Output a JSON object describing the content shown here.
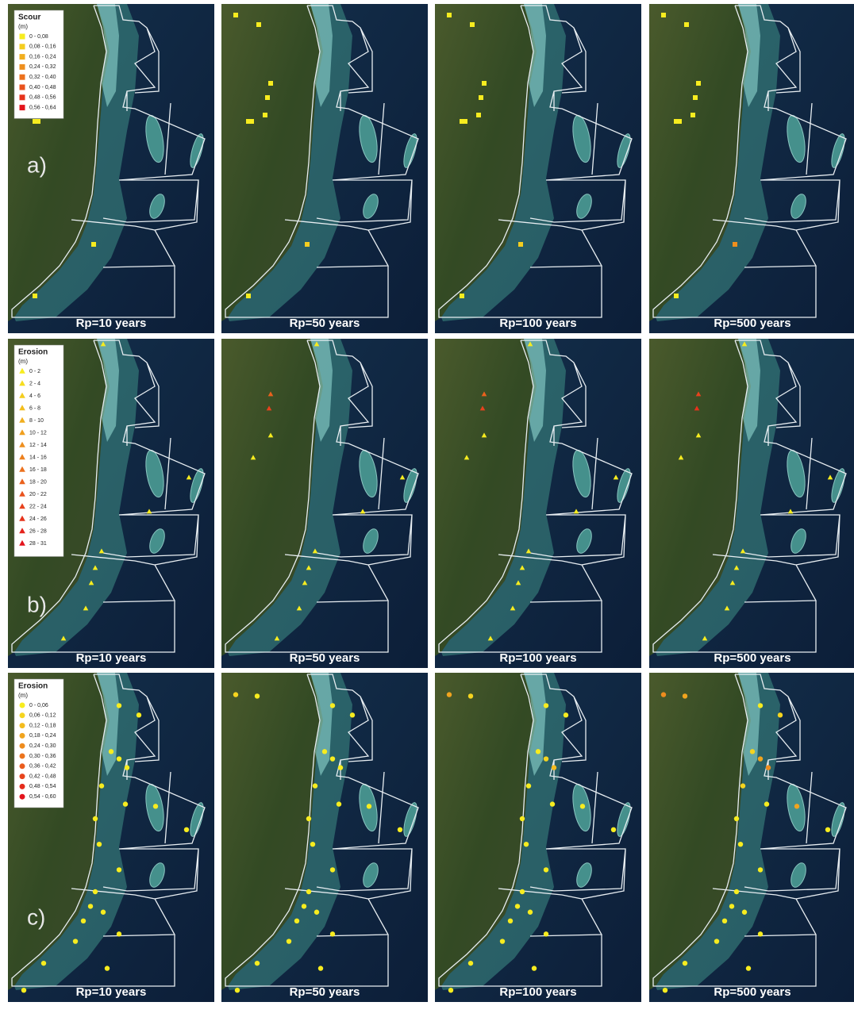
{
  "rows": [
    {
      "label": "a)",
      "legend": {
        "title": "Scour",
        "unit": "(m)",
        "shape": "square",
        "color_range": [
          "#f7ec1f",
          "#e3141c"
        ],
        "items": [
          "0 - 0,08",
          "0,08 - 0,16",
          "0,16 - 0,24",
          "0,24 - 0,32",
          "0,32 - 0,40",
          "0,40 - 0,48",
          "0,48 - 0,56",
          "0,56 - 0,64"
        ]
      }
    },
    {
      "label": "b)",
      "legend": {
        "title": "Erosion",
        "unit": "(m)",
        "shape": "triangle",
        "color_range": [
          "#f7ec1f",
          "#e3141c"
        ],
        "items": [
          "0 - 2",
          "2 - 4",
          "4 - 6",
          "6 - 8",
          "8 - 10",
          "10 - 12",
          "12 - 14",
          "14 - 16",
          "16 - 18",
          "18 - 20",
          "20 - 22",
          "22 - 24",
          "24 - 26",
          "26 - 28",
          "28 - 31"
        ]
      }
    },
    {
      "label": "c)",
      "legend": {
        "title": "Erosion",
        "unit": "(m)",
        "shape": "circle",
        "color_range": [
          "#f7ec1f",
          "#e3141c"
        ],
        "items": [
          "0 - 0,06",
          "0,06 - 0,12",
          "0,12 - 0,18",
          "0,18 - 0,24",
          "0,24 - 0,30",
          "0,30 - 0,36",
          "0,36 - 0,42",
          "0,42 - 0,48",
          "0,48 - 0,54",
          "0,54 - 0,60"
        ]
      }
    }
  ],
  "panel_labels": [
    "Rp=10 years",
    "Rp=50 years",
    "Rp=100 years",
    "Rp=500 years"
  ]
}
